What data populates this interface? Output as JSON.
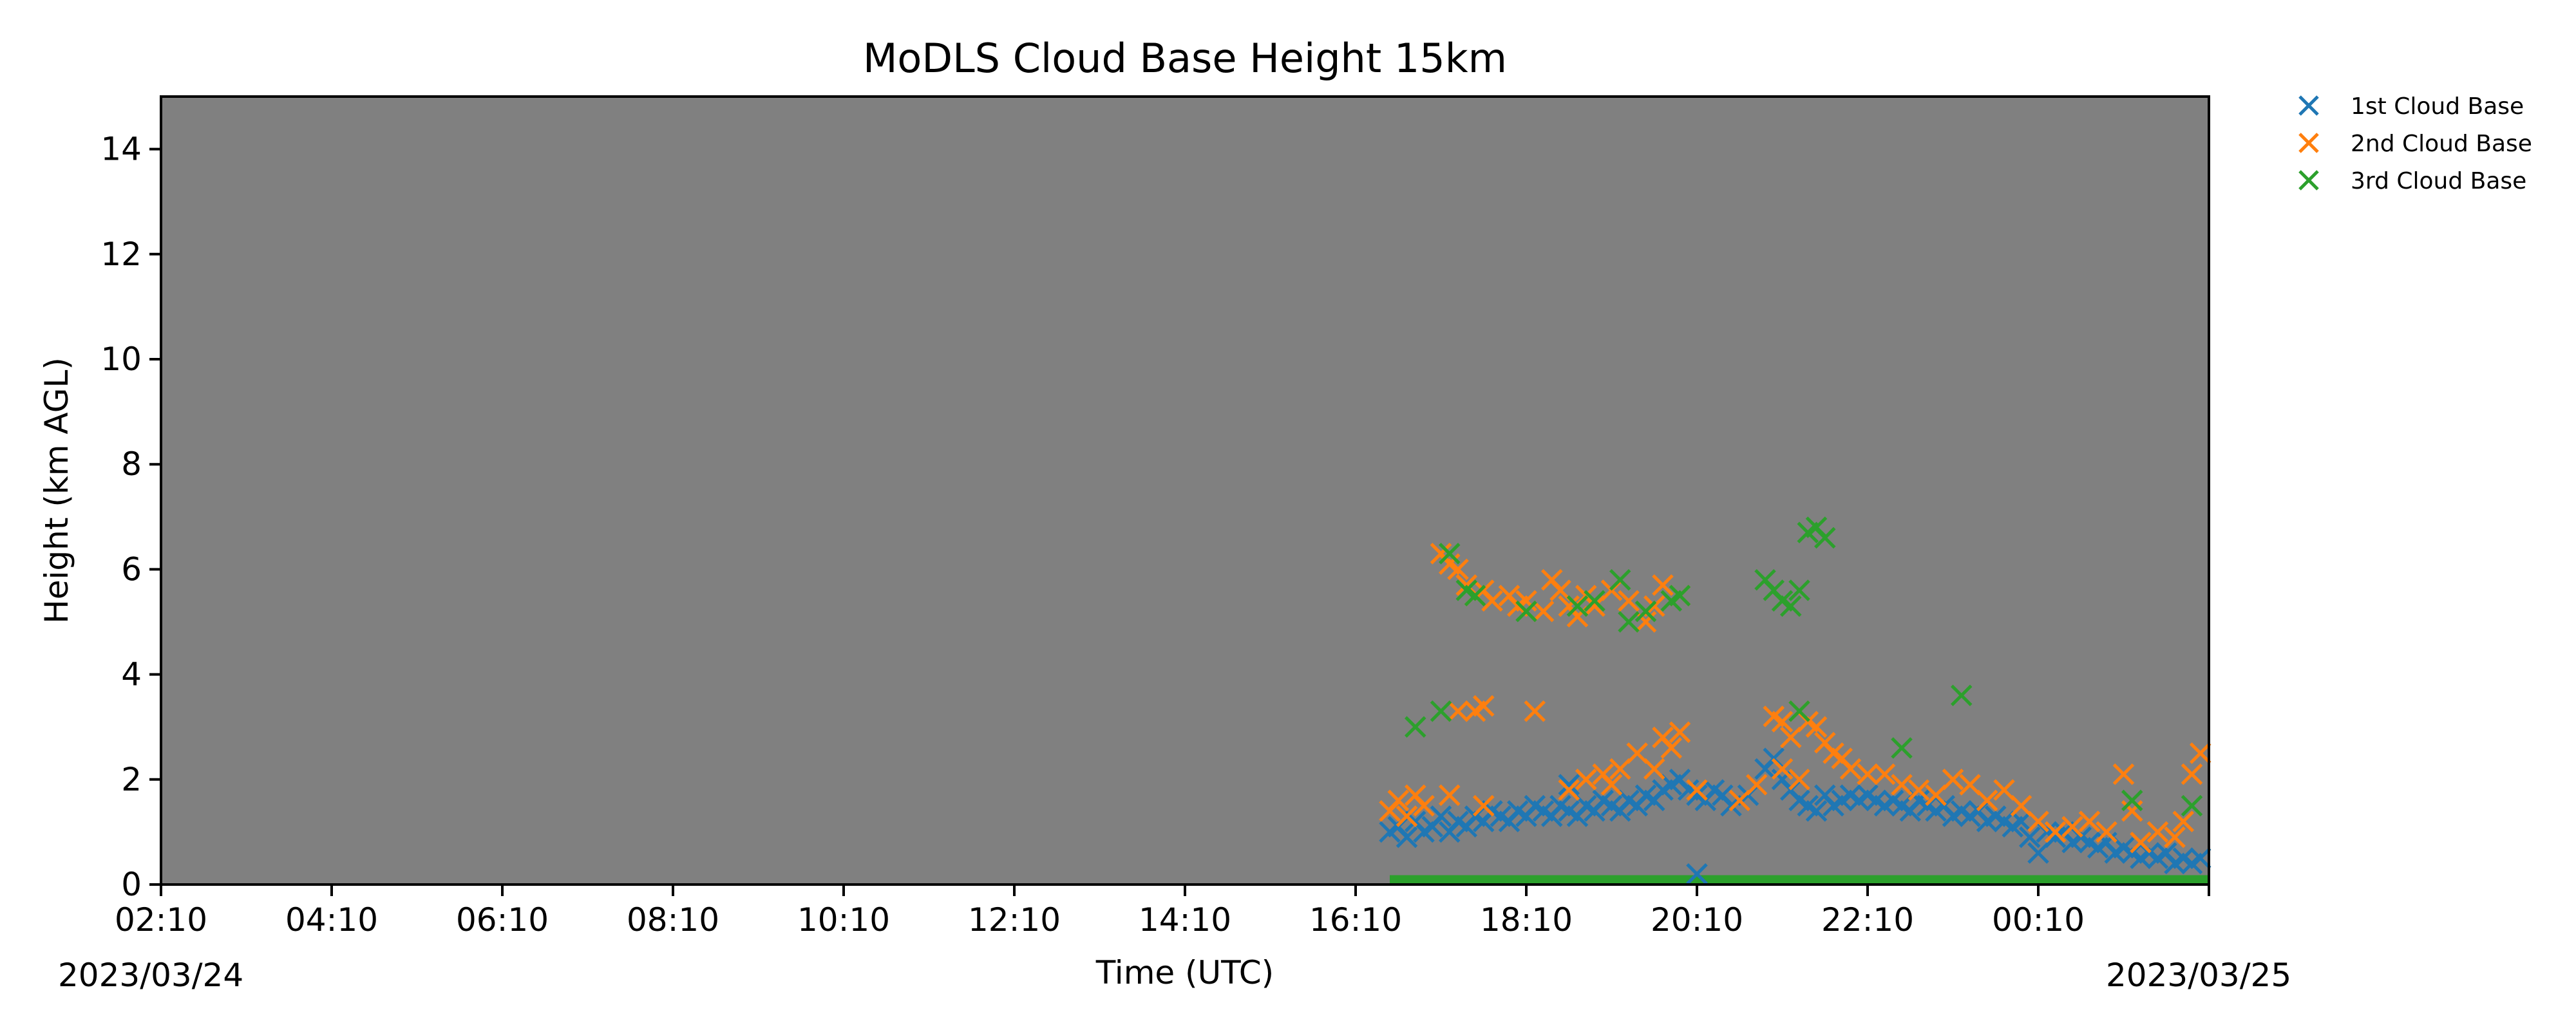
{
  "chart_data": {
    "type": "scatter",
    "title": "MoDLS Cloud Base Height 15km",
    "xlabel": "Time (UTC)",
    "ylabel": "Height (km AGL)",
    "ylim": [
      0,
      15
    ],
    "xlim_hours": [
      0,
      24
    ],
    "x_ticks": [
      "02:10",
      "04:10",
      "06:10",
      "08:10",
      "10:10",
      "12:10",
      "14:10",
      "16:10",
      "18:10",
      "20:10",
      "22:10",
      "00:10"
    ],
    "y_ticks": [
      0,
      2,
      4,
      6,
      8,
      10,
      12,
      14
    ],
    "start_date": "2023/03/24",
    "end_date": "2023/03/25",
    "plot_background": "#808080",
    "grid": false,
    "legend_position": "outside-top-right",
    "series": [
      {
        "name": "1st Cloud Base",
        "color": "#1f77b4",
        "marker": "x",
        "points": [
          [
            14.4,
            1.0
          ],
          [
            14.5,
            1.1
          ],
          [
            14.6,
            0.9
          ],
          [
            14.7,
            1.2
          ],
          [
            14.8,
            1.0
          ],
          [
            14.9,
            1.1
          ],
          [
            15.0,
            1.3
          ],
          [
            15.1,
            1.0
          ],
          [
            15.2,
            1.2
          ],
          [
            15.3,
            1.1
          ],
          [
            15.4,
            1.3
          ],
          [
            15.5,
            1.2
          ],
          [
            15.6,
            1.4
          ],
          [
            15.7,
            1.3
          ],
          [
            15.8,
            1.2
          ],
          [
            15.9,
            1.4
          ],
          [
            16.0,
            1.3
          ],
          [
            16.1,
            1.5
          ],
          [
            16.2,
            1.4
          ],
          [
            16.3,
            1.3
          ],
          [
            16.4,
            1.5
          ],
          [
            16.5,
            1.4
          ],
          [
            16.6,
            1.3
          ],
          [
            16.7,
            1.5
          ],
          [
            16.8,
            1.4
          ],
          [
            16.9,
            1.6
          ],
          [
            17.0,
            1.5
          ],
          [
            17.1,
            1.4
          ],
          [
            17.2,
            1.6
          ],
          [
            17.3,
            1.5
          ],
          [
            17.4,
            1.7
          ],
          [
            17.5,
            1.6
          ],
          [
            17.6,
            1.8
          ],
          [
            17.7,
            1.9
          ],
          [
            17.8,
            2.0
          ],
          [
            17.9,
            1.8
          ],
          [
            18.0,
            1.7
          ],
          [
            18.1,
            1.6
          ],
          [
            18.2,
            1.8
          ],
          [
            18.3,
            1.7
          ],
          [
            18.4,
            1.5
          ],
          [
            18.5,
            1.6
          ],
          [
            18.6,
            1.7
          ],
          [
            18.7,
            1.9
          ],
          [
            18.8,
            2.2
          ],
          [
            18.9,
            2.4
          ],
          [
            19.0,
            2.0
          ],
          [
            19.1,
            1.8
          ],
          [
            19.2,
            1.6
          ],
          [
            19.3,
            1.5
          ],
          [
            19.4,
            1.4
          ],
          [
            19.5,
            1.7
          ],
          [
            19.6,
            1.5
          ],
          [
            19.7,
            1.6
          ],
          [
            19.8,
            1.7
          ],
          [
            19.9,
            1.6
          ],
          [
            20.0,
            1.7
          ],
          [
            20.1,
            1.6
          ],
          [
            20.2,
            1.5
          ],
          [
            20.3,
            1.6
          ],
          [
            20.4,
            1.5
          ],
          [
            20.5,
            1.4
          ],
          [
            20.6,
            1.6
          ],
          [
            20.7,
            1.5
          ],
          [
            20.8,
            1.4
          ],
          [
            20.9,
            1.5
          ],
          [
            21.0,
            1.3
          ],
          [
            21.1,
            1.4
          ],
          [
            21.2,
            1.3
          ],
          [
            21.3,
            1.4
          ],
          [
            21.4,
            1.2
          ],
          [
            21.5,
            1.3
          ],
          [
            21.6,
            1.2
          ],
          [
            21.7,
            1.1
          ],
          [
            21.8,
            1.2
          ],
          [
            21.9,
            0.9
          ],
          [
            22.0,
            0.6
          ],
          [
            22.1,
            1.0
          ],
          [
            22.2,
            0.9
          ],
          [
            22.3,
            1.0
          ],
          [
            22.4,
            0.8
          ],
          [
            22.5,
            0.9
          ],
          [
            22.6,
            0.8
          ],
          [
            22.7,
            0.7
          ],
          [
            22.8,
            0.8
          ],
          [
            22.9,
            0.6
          ],
          [
            23.0,
            0.7
          ],
          [
            23.1,
            0.6
          ],
          [
            23.2,
            0.5
          ],
          [
            23.3,
            0.6
          ],
          [
            23.4,
            0.5
          ],
          [
            23.5,
            0.6
          ],
          [
            23.6,
            0.4
          ],
          [
            23.7,
            0.5
          ],
          [
            23.8,
            0.4
          ],
          [
            23.9,
            0.5
          ],
          [
            18.0,
            0.2
          ],
          [
            16.5,
            1.9
          ],
          [
            19.2,
            2.0
          ],
          [
            20.6,
            1.8
          ]
        ]
      },
      {
        "name": "2nd Cloud Base",
        "color": "#ff7f0e",
        "marker": "x",
        "points": [
          [
            14.4,
            1.4
          ],
          [
            14.5,
            1.6
          ],
          [
            14.6,
            1.3
          ],
          [
            14.7,
            1.7
          ],
          [
            14.8,
            1.5
          ],
          [
            15.1,
            1.7
          ],
          [
            15.5,
            1.5
          ],
          [
            15.0,
            6.3
          ],
          [
            15.1,
            6.1
          ],
          [
            15.2,
            6.0
          ],
          [
            15.3,
            5.7
          ],
          [
            15.4,
            5.5
          ],
          [
            15.5,
            5.6
          ],
          [
            15.6,
            5.4
          ],
          [
            15.8,
            5.5
          ],
          [
            15.9,
            5.3
          ],
          [
            16.0,
            5.4
          ],
          [
            16.2,
            5.2
          ],
          [
            16.3,
            5.8
          ],
          [
            16.4,
            5.6
          ],
          [
            16.5,
            5.3
          ],
          [
            16.6,
            5.1
          ],
          [
            16.7,
            5.5
          ],
          [
            16.8,
            5.3
          ],
          [
            17.0,
            5.6
          ],
          [
            17.2,
            5.4
          ],
          [
            17.4,
            5.0
          ],
          [
            17.5,
            5.3
          ],
          [
            17.6,
            5.7
          ],
          [
            17.8,
            5.5
          ],
          [
            15.2,
            3.3
          ],
          [
            15.4,
            3.3
          ],
          [
            15.5,
            3.4
          ],
          [
            16.1,
            3.3
          ],
          [
            16.5,
            1.8
          ],
          [
            16.7,
            2.0
          ],
          [
            16.9,
            2.1
          ],
          [
            17.0,
            1.9
          ],
          [
            17.1,
            2.2
          ],
          [
            17.3,
            2.5
          ],
          [
            17.5,
            2.2
          ],
          [
            17.6,
            2.8
          ],
          [
            17.7,
            2.6
          ],
          [
            17.8,
            2.9
          ],
          [
            18.0,
            1.8
          ],
          [
            18.5,
            1.6
          ],
          [
            18.7,
            1.9
          ],
          [
            18.9,
            3.2
          ],
          [
            19.0,
            3.1
          ],
          [
            19.1,
            2.8
          ],
          [
            19.2,
            3.3
          ],
          [
            19.3,
            3.1
          ],
          [
            19.4,
            3.0
          ],
          [
            19.5,
            2.7
          ],
          [
            19.6,
            2.5
          ],
          [
            19.7,
            2.4
          ],
          [
            19.0,
            2.2
          ],
          [
            19.2,
            2.0
          ],
          [
            19.8,
            2.2
          ],
          [
            20.0,
            2.1
          ],
          [
            20.2,
            2.1
          ],
          [
            20.4,
            1.9
          ],
          [
            20.6,
            1.8
          ],
          [
            20.8,
            1.7
          ],
          [
            21.0,
            2.0
          ],
          [
            21.2,
            1.9
          ],
          [
            21.4,
            1.6
          ],
          [
            21.6,
            1.8
          ],
          [
            21.8,
            1.5
          ],
          [
            22.0,
            1.2
          ],
          [
            22.2,
            1.0
          ],
          [
            22.4,
            1.1
          ],
          [
            22.6,
            1.2
          ],
          [
            22.8,
            1.0
          ],
          [
            23.0,
            2.1
          ],
          [
            23.1,
            1.4
          ],
          [
            23.2,
            0.8
          ],
          [
            23.4,
            1.0
          ],
          [
            23.6,
            0.9
          ],
          [
            23.7,
            1.2
          ],
          [
            23.8,
            2.1
          ],
          [
            23.9,
            2.5
          ]
        ]
      },
      {
        "name": "3rd Cloud Base",
        "color": "#2ca02c",
        "marker": "x",
        "points": [
          [
            14.7,
            3.0
          ],
          [
            15.0,
            3.3
          ],
          [
            15.1,
            6.3
          ],
          [
            15.3,
            5.6
          ],
          [
            15.4,
            5.5
          ],
          [
            16.0,
            5.2
          ],
          [
            16.6,
            5.3
          ],
          [
            16.8,
            5.4
          ],
          [
            17.1,
            5.8
          ],
          [
            17.2,
            5.0
          ],
          [
            17.4,
            5.2
          ],
          [
            17.7,
            5.4
          ],
          [
            17.8,
            5.5
          ],
          [
            18.8,
            5.8
          ],
          [
            18.9,
            5.6
          ],
          [
            19.0,
            5.4
          ],
          [
            19.1,
            5.3
          ],
          [
            19.2,
            5.6
          ],
          [
            19.3,
            6.7
          ],
          [
            19.4,
            6.8
          ],
          [
            19.5,
            6.6
          ],
          [
            19.2,
            3.3
          ],
          [
            20.4,
            2.6
          ],
          [
            21.1,
            3.6
          ],
          [
            23.1,
            1.6
          ],
          [
            23.8,
            1.5
          ]
        ]
      }
    ],
    "ground_band": {
      "x_start": 14.4,
      "x_end": 24.0,
      "y": 0.08,
      "color": "#2ca02c"
    }
  }
}
